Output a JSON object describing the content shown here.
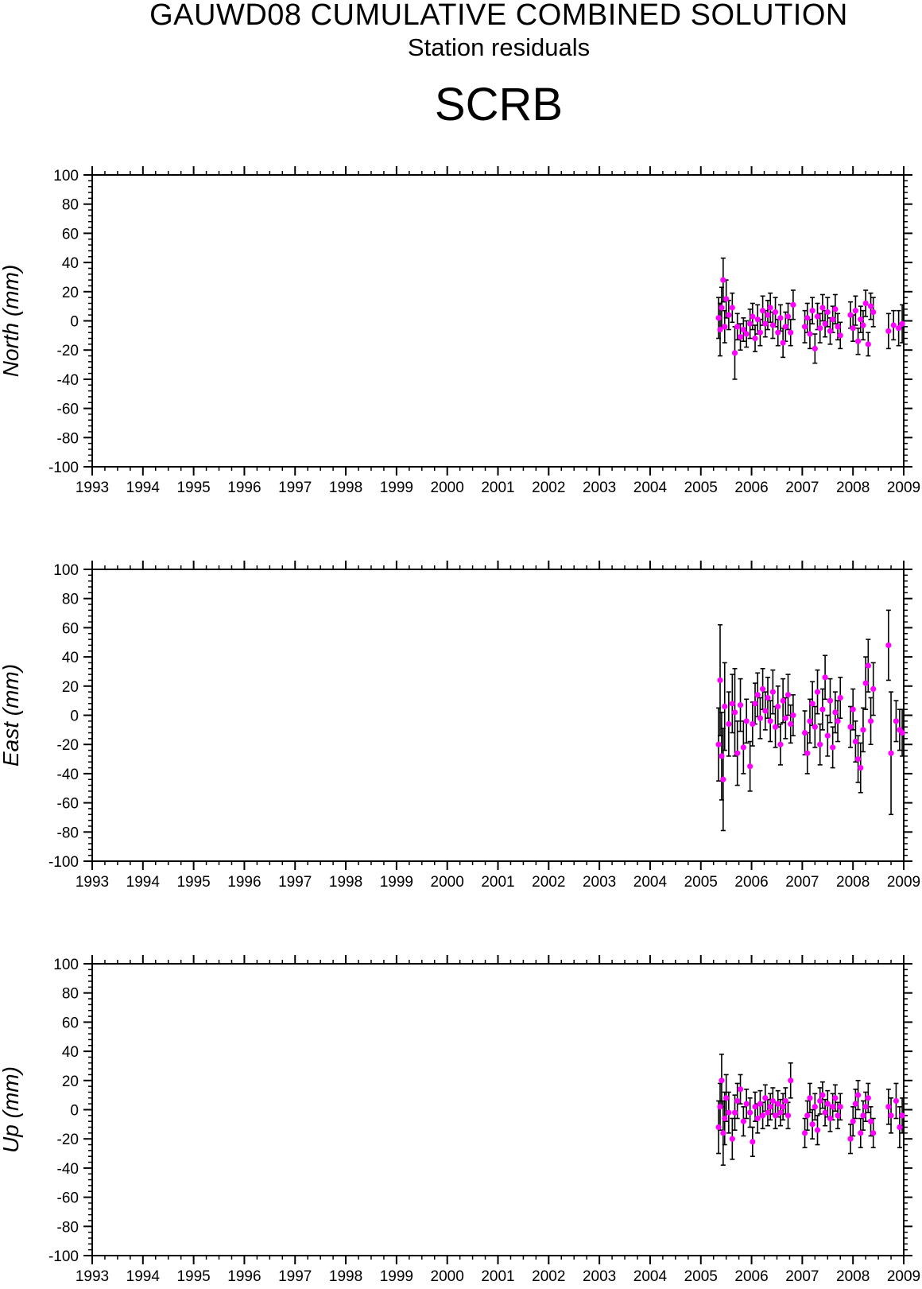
{
  "header": {
    "title": "GAUWD08 CUMULATIVE COMBINED SOLUTION",
    "subtitle": "Station residuals",
    "station": "SCRB"
  },
  "colors": {
    "marker": "#ff00ff",
    "errorbar": "#000000",
    "axis": "#000000"
  },
  "chart_data": [
    {
      "type": "scatter",
      "panel": "north",
      "ylabel": "North (mm)",
      "xlim": [
        1993,
        2009
      ],
      "ylim": [
        -100,
        100
      ],
      "x_ticks": [
        "1993",
        "1994",
        "1995",
        "1996",
        "1997",
        "1998",
        "1999",
        "2000",
        "2001",
        "2002",
        "2003",
        "2004",
        "2005",
        "2006",
        "2007",
        "2008",
        "2009"
      ],
      "y_ticks": [
        "100",
        "80",
        "60",
        "40",
        "20",
        "0",
        "-20",
        "-40",
        "-60",
        "-80",
        "-100"
      ],
      "grid": false,
      "points": [
        [
          2005.35,
          2,
          14
        ],
        [
          2005.38,
          -6,
          18
        ],
        [
          2005.41,
          9,
          14
        ],
        [
          2005.44,
          28,
          15
        ],
        [
          2005.47,
          -4,
          11
        ],
        [
          2005.5,
          15,
          13
        ],
        [
          2005.55,
          4,
          10
        ],
        [
          2005.62,
          9,
          10
        ],
        [
          2005.67,
          -22,
          18
        ],
        [
          2005.72,
          -4,
          9
        ],
        [
          2005.78,
          -11,
          9
        ],
        [
          2005.84,
          -6,
          8
        ],
        [
          2005.9,
          -9,
          9
        ],
        [
          2005.97,
          -2,
          10
        ],
        [
          2006.02,
          3,
          9
        ],
        [
          2006.07,
          -12,
          9
        ],
        [
          2006.12,
          1,
          10
        ],
        [
          2006.17,
          -8,
          9
        ],
        [
          2006.22,
          7,
          10
        ],
        [
          2006.27,
          -2,
          9
        ],
        [
          2006.32,
          4,
          10
        ],
        [
          2006.37,
          9,
          10
        ],
        [
          2006.42,
          -3,
          9
        ],
        [
          2006.47,
          6,
          10
        ],
        [
          2006.52,
          -8,
          9
        ],
        [
          2006.57,
          2,
          9
        ],
        [
          2006.62,
          -15,
          10
        ],
        [
          2006.67,
          -4,
          10
        ],
        [
          2006.72,
          3,
          9
        ],
        [
          2006.77,
          -8,
          9
        ],
        [
          2006.82,
          11,
          10
        ],
        [
          2007.05,
          -4,
          11
        ],
        [
          2007.1,
          2,
          10
        ],
        [
          2007.15,
          -9,
          10
        ],
        [
          2007.2,
          7,
          9
        ],
        [
          2007.25,
          -19,
          10
        ],
        [
          2007.3,
          3,
          9
        ],
        [
          2007.35,
          -5,
          10
        ],
        [
          2007.4,
          9,
          9
        ],
        [
          2007.45,
          -2,
          9
        ],
        [
          2007.5,
          6,
          10
        ],
        [
          2007.55,
          -7,
          9
        ],
        [
          2007.6,
          1,
          9
        ],
        [
          2007.65,
          8,
          10
        ],
        [
          2007.7,
          -4,
          9
        ],
        [
          2007.75,
          -10,
          9
        ],
        [
          2007.95,
          4,
          9
        ],
        [
          2008.0,
          -5,
          9
        ],
        [
          2008.05,
          7,
          10
        ],
        [
          2008.1,
          -14,
          9
        ],
        [
          2008.15,
          1,
          9
        ],
        [
          2008.2,
          -3,
          10
        ],
        [
          2008.25,
          12,
          9
        ],
        [
          2008.3,
          -16,
          8
        ],
        [
          2008.35,
          10,
          9
        ],
        [
          2008.4,
          6,
          10
        ],
        [
          2008.7,
          -7,
          12
        ],
        [
          2008.8,
          -3,
          10
        ],
        [
          2008.9,
          -5,
          12
        ],
        [
          2008.97,
          -2,
          13
        ]
      ]
    },
    {
      "type": "scatter",
      "panel": "east",
      "ylabel": "East (mm)",
      "xlim": [
        1993,
        2009
      ],
      "ylim": [
        -100,
        100
      ],
      "x_ticks": [
        "1993",
        "1994",
        "1995",
        "1996",
        "1997",
        "1998",
        "1999",
        "2000",
        "2001",
        "2002",
        "2003",
        "2004",
        "2005",
        "2006",
        "2007",
        "2008",
        "2009"
      ],
      "y_ticks": [
        "100",
        "80",
        "60",
        "40",
        "20",
        "0",
        "-20",
        "-40",
        "-60",
        "-80",
        "-100"
      ],
      "grid": false,
      "points": [
        [
          2005.35,
          -20,
          25
        ],
        [
          2005.38,
          24,
          38
        ],
        [
          2005.41,
          -28,
          30
        ],
        [
          2005.44,
          -44,
          35
        ],
        [
          2005.47,
          6,
          30
        ],
        [
          2005.55,
          -6,
          22
        ],
        [
          2005.62,
          8,
          20
        ],
        [
          2005.67,
          2,
          30
        ],
        [
          2005.72,
          -26,
          22
        ],
        [
          2005.78,
          7,
          18
        ],
        [
          2005.84,
          -22,
          18
        ],
        [
          2005.9,
          -4,
          15
        ],
        [
          2005.97,
          -35,
          17
        ],
        [
          2006.02,
          -6,
          15
        ],
        [
          2006.07,
          8,
          14
        ],
        [
          2006.12,
          14,
          15
        ],
        [
          2006.17,
          -2,
          14
        ],
        [
          2006.22,
          18,
          14
        ],
        [
          2006.27,
          3,
          13
        ],
        [
          2006.32,
          12,
          14
        ],
        [
          2006.37,
          -4,
          14
        ],
        [
          2006.42,
          16,
          15
        ],
        [
          2006.47,
          -8,
          14
        ],
        [
          2006.52,
          6,
          14
        ],
        [
          2006.57,
          -20,
          14
        ],
        [
          2006.62,
          10,
          15
        ],
        [
          2006.67,
          -2,
          14
        ],
        [
          2006.72,
          14,
          14
        ],
        [
          2006.77,
          -6,
          13
        ],
        [
          2006.82,
          0,
          14
        ],
        [
          2007.05,
          -12,
          15
        ],
        [
          2007.1,
          -26,
          14
        ],
        [
          2007.15,
          -4,
          15
        ],
        [
          2007.2,
          8,
          15
        ],
        [
          2007.25,
          -8,
          14
        ],
        [
          2007.3,
          16,
          15
        ],
        [
          2007.35,
          -20,
          14
        ],
        [
          2007.4,
          4,
          14
        ],
        [
          2007.45,
          26,
          15
        ],
        [
          2007.5,
          -14,
          14
        ],
        [
          2007.55,
          10,
          15
        ],
        [
          2007.6,
          -22,
          14
        ],
        [
          2007.65,
          2,
          14
        ],
        [
          2007.7,
          -4,
          14
        ],
        [
          2007.75,
          12,
          14
        ],
        [
          2007.95,
          -8,
          14
        ],
        [
          2008.0,
          4,
          14
        ],
        [
          2008.05,
          -18,
          14
        ],
        [
          2008.1,
          -30,
          16
        ],
        [
          2008.15,
          -36,
          17
        ],
        [
          2008.2,
          -10,
          15
        ],
        [
          2008.25,
          22,
          18
        ],
        [
          2008.3,
          34,
          18
        ],
        [
          2008.35,
          -4,
          16
        ],
        [
          2008.4,
          18,
          18
        ],
        [
          2008.7,
          48,
          24
        ],
        [
          2008.75,
          -26,
          42
        ],
        [
          2008.85,
          -4,
          14
        ],
        [
          2008.92,
          -10,
          14
        ],
        [
          2008.97,
          -12,
          16
        ]
      ]
    },
    {
      "type": "scatter",
      "panel": "up",
      "ylabel": "Up (mm)",
      "xlim": [
        1993,
        2009
      ],
      "ylim": [
        -100,
        100
      ],
      "x_ticks": [
        "1993",
        "1994",
        "1995",
        "1996",
        "1997",
        "1998",
        "1999",
        "2000",
        "2001",
        "2002",
        "2003",
        "2004",
        "2005",
        "2006",
        "2007",
        "2008",
        "2009"
      ],
      "y_ticks": [
        "100",
        "80",
        "60",
        "40",
        "20",
        "0",
        "-20",
        "-40",
        "-60",
        "-80",
        "-100"
      ],
      "grid": false,
      "points": [
        [
          2005.35,
          -12,
          18
        ],
        [
          2005.38,
          2,
          16
        ],
        [
          2005.41,
          20,
          18
        ],
        [
          2005.44,
          -16,
          22
        ],
        [
          2005.47,
          -6,
          18
        ],
        [
          2005.5,
          8,
          16
        ],
        [
          2005.55,
          -2,
          14
        ],
        [
          2005.62,
          -20,
          14
        ],
        [
          2005.67,
          -2,
          12
        ],
        [
          2005.72,
          6,
          12
        ],
        [
          2005.78,
          14,
          10
        ],
        [
          2005.84,
          -8,
          10
        ],
        [
          2005.9,
          4,
          10
        ],
        [
          2005.97,
          -2,
          10
        ],
        [
          2006.02,
          -22,
          10
        ],
        [
          2006.07,
          2,
          10
        ],
        [
          2006.12,
          -6,
          10
        ],
        [
          2006.17,
          4,
          9
        ],
        [
          2006.22,
          -4,
          9
        ],
        [
          2006.27,
          8,
          9
        ],
        [
          2006.32,
          -2,
          9
        ],
        [
          2006.37,
          2,
          9
        ],
        [
          2006.42,
          6,
          9
        ],
        [
          2006.47,
          -4,
          9
        ],
        [
          2006.52,
          4,
          9
        ],
        [
          2006.57,
          -2,
          9
        ],
        [
          2006.62,
          2,
          9
        ],
        [
          2006.67,
          6,
          9
        ],
        [
          2006.72,
          -4,
          9
        ],
        [
          2006.77,
          20,
          12
        ],
        [
          2007.05,
          -16,
          10
        ],
        [
          2007.1,
          -4,
          10
        ],
        [
          2007.15,
          8,
          10
        ],
        [
          2007.2,
          -10,
          10
        ],
        [
          2007.25,
          2,
          9
        ],
        [
          2007.3,
          -14,
          10
        ],
        [
          2007.35,
          6,
          9
        ],
        [
          2007.4,
          10,
          9
        ],
        [
          2007.45,
          -2,
          9
        ],
        [
          2007.5,
          4,
          9
        ],
        [
          2007.55,
          -6,
          9
        ],
        [
          2007.6,
          2,
          9
        ],
        [
          2007.65,
          8,
          9
        ],
        [
          2007.7,
          -4,
          9
        ],
        [
          2007.75,
          2,
          9
        ],
        [
          2007.95,
          -20,
          10
        ],
        [
          2008.0,
          -8,
          10
        ],
        [
          2008.05,
          4,
          10
        ],
        [
          2008.1,
          10,
          10
        ],
        [
          2008.15,
          -16,
          10
        ],
        [
          2008.2,
          -4,
          10
        ],
        [
          2008.25,
          2,
          10
        ],
        [
          2008.3,
          8,
          10
        ],
        [
          2008.35,
          -8,
          10
        ],
        [
          2008.4,
          -16,
          10
        ],
        [
          2008.7,
          2,
          12
        ],
        [
          2008.75,
          -4,
          12
        ],
        [
          2008.85,
          6,
          12
        ],
        [
          2008.92,
          -12,
          14
        ],
        [
          2008.97,
          -4,
          12
        ]
      ]
    }
  ]
}
